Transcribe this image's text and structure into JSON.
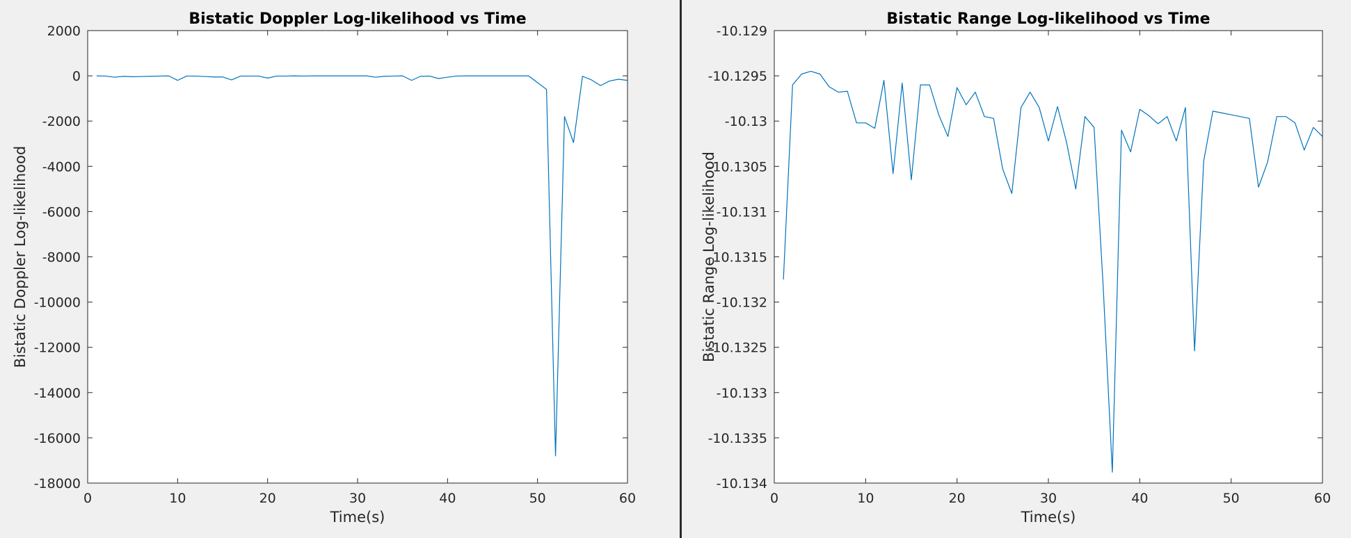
{
  "chart_data": [
    {
      "type": "line",
      "title": "Bistatic Doppler Log-likelihood vs Time",
      "xlabel": "Time(s)",
      "ylabel": "Bistatic Doppler Log-likelihood",
      "xlim": [
        0,
        60
      ],
      "ylim": [
        -18000,
        2000
      ],
      "xticks": [
        0,
        10,
        20,
        30,
        40,
        50,
        60
      ],
      "xtick_labels": [
        "0",
        "10",
        "20",
        "30",
        "40",
        "50",
        "60"
      ],
      "yticks": [
        2000,
        0,
        -2000,
        -4000,
        -6000,
        -8000,
        -10000,
        -12000,
        -14000,
        -16000,
        -18000
      ],
      "ytick_labels": [
        "2000",
        "0",
        "-2000",
        "-4000",
        "-6000",
        "-8000",
        "-10000",
        "-12000",
        "-14000",
        "-16000",
        "-18000"
      ],
      "grid": false,
      "line_color": "#0072bd",
      "x": [
        1,
        2,
        3,
        4,
        5,
        6,
        7,
        8,
        9,
        10,
        11,
        12,
        13,
        14,
        15,
        16,
        17,
        18,
        19,
        20,
        21,
        22,
        23,
        24,
        25,
        26,
        27,
        28,
        29,
        30,
        31,
        32,
        33,
        34,
        35,
        36,
        37,
        38,
        39,
        40,
        41,
        42,
        43,
        44,
        45,
        46,
        47,
        48,
        49,
        50,
        51,
        52,
        53,
        54,
        55,
        56,
        57,
        58,
        59,
        60
      ],
      "y": [
        0,
        -10,
        -60,
        -20,
        -40,
        -30,
        -20,
        -10,
        0,
        -200,
        -10,
        -10,
        -30,
        -50,
        -50,
        -180,
        -10,
        -10,
        -10,
        -100,
        -10,
        -10,
        0,
        -10,
        0,
        0,
        0,
        0,
        0,
        0,
        0,
        -60,
        -20,
        -10,
        0,
        -200,
        -20,
        -10,
        -120,
        -60,
        -10,
        0,
        0,
        0,
        0,
        0,
        0,
        0,
        0,
        -300,
        -600,
        -16800,
        -1800,
        -2950,
        -20,
        -180,
        -430,
        -230,
        -150,
        -200
      ]
    },
    {
      "type": "line",
      "title": "Bistatic Range  Log-likelihood vs Time",
      "xlabel": "Time(s)",
      "ylabel": "Bistatic Range Log-likelihood",
      "xlim": [
        0,
        60
      ],
      "ylim": [
        -10.134,
        -10.129
      ],
      "xticks": [
        0,
        10,
        20,
        30,
        40,
        50,
        60
      ],
      "xtick_labels": [
        "0",
        "10",
        "20",
        "30",
        "40",
        "50",
        "60"
      ],
      "yticks": [
        -10.129,
        -10.1295,
        -10.13,
        -10.1305,
        -10.131,
        -10.1315,
        -10.132,
        -10.1325,
        -10.133,
        -10.1335,
        -10.134
      ],
      "ytick_labels": [
        "-10.129",
        "-10.1295",
        "-10.13",
        "-10.1305",
        "-10.131",
        "-10.1315",
        "-10.132",
        "-10.1325",
        "-10.133",
        "-10.1335",
        "-10.134"
      ],
      "grid": false,
      "line_color": "#0072bd",
      "x": [
        1,
        2,
        3,
        4,
        5,
        6,
        7,
        8,
        9,
        10,
        11,
        12,
        13,
        14,
        15,
        16,
        17,
        18,
        19,
        20,
        21,
        22,
        23,
        24,
        25,
        26,
        27,
        28,
        29,
        30,
        31,
        32,
        33,
        34,
        35,
        36,
        37,
        38,
        39,
        40,
        41,
        42,
        43,
        44,
        45,
        46,
        47,
        48,
        49,
        50,
        51,
        52,
        53,
        54,
        55,
        56,
        57,
        58,
        59,
        60
      ],
      "y": [
        -10.13175,
        -10.1296,
        -10.12948,
        -10.12945,
        -10.12948,
        -10.12962,
        -10.12968,
        -10.12967,
        -10.13002,
        -10.13002,
        -10.13008,
        -10.12955,
        -10.13058,
        -10.12958,
        -10.13065,
        -10.1296,
        -10.1296,
        -10.12993,
        -10.13017,
        -10.12963,
        -10.12982,
        -10.12968,
        -10.12995,
        -10.12997,
        -10.13053,
        -10.1308,
        -10.12985,
        -10.12968,
        -10.12985,
        -10.13022,
        -10.12984,
        -10.13024,
        -10.13075,
        -10.12995,
        -10.13007,
        -10.13183,
        -10.13388,
        -10.1301,
        -10.13034,
        -10.12987,
        -10.12994,
        -10.13003,
        -10.12995,
        -10.13022,
        -10.12985,
        -10.13254,
        -10.13044,
        -10.12989,
        -10.12991,
        -10.12993,
        -10.12995,
        -10.12997,
        -10.13073,
        -10.13045,
        -10.12995,
        -10.12995,
        -10.13002,
        -10.13032,
        -10.13007,
        -10.13017
      ]
    }
  ]
}
